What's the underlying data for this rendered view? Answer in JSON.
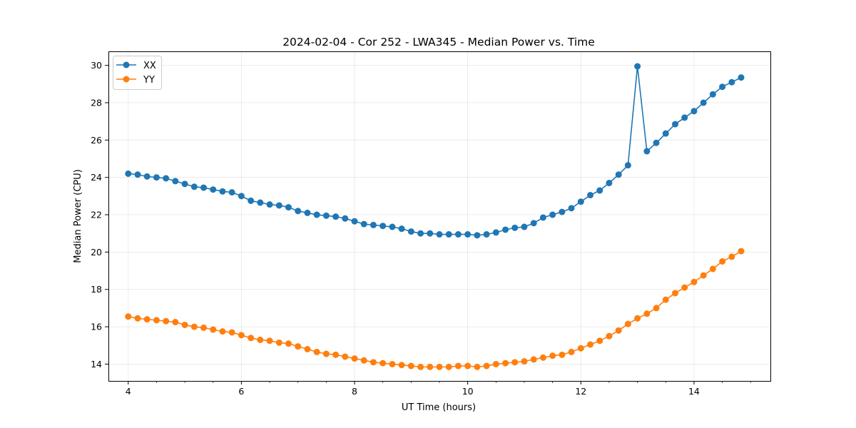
{
  "chart_data": {
    "type": "line",
    "title": "2024-02-04 - Cor 252 - LWA345 - Median Power vs. Time",
    "xlabel": "UT Time (hours)",
    "ylabel": "Median Power (CPU)",
    "xlim": [
      3.65,
      15.35
    ],
    "ylim": [
      13.1,
      30.75
    ],
    "xticks": [
      4,
      6,
      8,
      10,
      12,
      14
    ],
    "xtick_labels": [
      "4",
      "6",
      "8",
      "10",
      "12",
      "14"
    ],
    "xminor_ticks": [
      3.5,
      4.5,
      5,
      5.5,
      6.5,
      7,
      7.5,
      8.5,
      9,
      9.5,
      10.5,
      11,
      11.5,
      12.5,
      13,
      13.5,
      14.5,
      15
    ],
    "yticks": [
      14,
      16,
      18,
      20,
      22,
      24,
      26,
      28,
      30
    ],
    "ytick_labels": [
      "14",
      "16",
      "18",
      "20",
      "22",
      "24",
      "26",
      "28",
      "30"
    ],
    "grid": true,
    "legend_position": "top-left",
    "x": [
      4.0,
      4.167,
      4.333,
      4.5,
      4.667,
      4.833,
      5.0,
      5.167,
      5.333,
      5.5,
      5.667,
      5.833,
      6.0,
      6.167,
      6.333,
      6.5,
      6.667,
      6.833,
      7.0,
      7.167,
      7.333,
      7.5,
      7.667,
      7.833,
      8.0,
      8.167,
      8.333,
      8.5,
      8.667,
      8.833,
      9.0,
      9.167,
      9.333,
      9.5,
      9.667,
      9.833,
      10.0,
      10.167,
      10.333,
      10.5,
      10.667,
      10.833,
      11.0,
      11.167,
      11.333,
      11.5,
      11.667,
      11.833,
      12.0,
      12.167,
      12.333,
      12.5,
      12.667,
      12.833,
      13.0,
      13.167,
      13.333,
      13.5,
      13.667,
      13.833,
      14.0,
      14.167,
      14.333,
      14.5,
      14.667,
      14.833
    ],
    "series": [
      {
        "name": "XX",
        "color": "#1f77b4",
        "values": [
          24.2,
          24.15,
          24.05,
          24.0,
          23.95,
          23.8,
          23.65,
          23.5,
          23.45,
          23.35,
          23.25,
          23.2,
          23.0,
          22.75,
          22.65,
          22.55,
          22.5,
          22.4,
          22.2,
          22.1,
          22.0,
          21.95,
          21.9,
          21.8,
          21.65,
          21.5,
          21.45,
          21.4,
          21.35,
          21.25,
          21.1,
          21.0,
          21.0,
          20.95,
          20.95,
          20.95,
          20.95,
          20.9,
          20.95,
          21.05,
          21.2,
          21.3,
          21.35,
          21.55,
          21.85,
          22.0,
          22.15,
          22.35,
          22.7,
          23.05,
          23.3,
          23.7,
          24.15,
          24.65,
          29.95,
          25.4,
          25.85,
          26.35,
          26.85,
          27.2,
          27.55,
          28.0,
          28.45,
          28.85,
          29.1,
          29.35
        ]
      },
      {
        "name": "YY",
        "color": "#ff7f0e",
        "values": [
          16.55,
          16.45,
          16.4,
          16.35,
          16.3,
          16.25,
          16.1,
          16.0,
          15.95,
          15.85,
          15.75,
          15.7,
          15.55,
          15.4,
          15.3,
          15.25,
          15.15,
          15.1,
          14.95,
          14.8,
          14.65,
          14.55,
          14.5,
          14.4,
          14.3,
          14.2,
          14.1,
          14.05,
          14.0,
          13.95,
          13.9,
          13.85,
          13.85,
          13.85,
          13.85,
          13.9,
          13.9,
          13.85,
          13.9,
          14.0,
          14.05,
          14.1,
          14.15,
          14.25,
          14.35,
          14.45,
          14.5,
          14.65,
          14.85,
          15.05,
          15.25,
          15.5,
          15.8,
          16.15,
          16.45,
          16.7,
          17.0,
          17.45,
          17.8,
          18.1,
          18.4,
          18.75,
          19.1,
          19.5,
          19.75,
          20.05
        ]
      }
    ]
  }
}
